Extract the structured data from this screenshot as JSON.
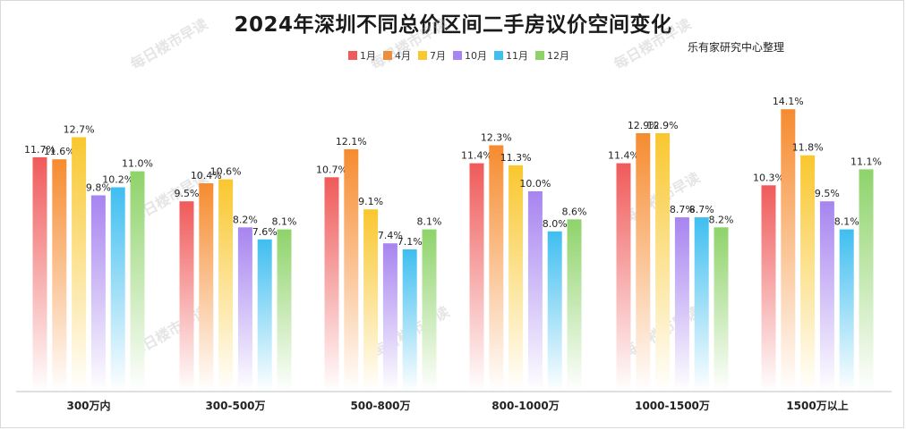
{
  "title": "2024年深圳不同总价区间二手房议价空间变化",
  "source": "乐有家研究中心整理",
  "watermark": "每日楼市早读",
  "colors": {
    "1月": "#f05a5a",
    "4月": "#f68b2f",
    "7月": "#f9c72e",
    "10月": "#a784f0",
    "11月": "#3fbef0",
    "12月": "#8ed36a"
  },
  "chart_data": {
    "type": "bar",
    "title": "2024年深圳不同总价区间二手房议价空间变化",
    "categories": [
      "300万内",
      "300-500万",
      "500-800万",
      "800-1000万",
      "1000-1500万",
      "1500万以上"
    ],
    "series": [
      {
        "name": "1月",
        "values": [
          11.7,
          9.5,
          10.7,
          11.4,
          11.4,
          10.3
        ],
        "labels": [
          "11.7%",
          "9.5%",
          "10.7%",
          "11.4%",
          "11.4%",
          "10.3%"
        ]
      },
      {
        "name": "4月",
        "values": [
          11.6,
          10.4,
          12.1,
          12.3,
          12.9,
          14.1
        ],
        "labels": [
          "11.6%",
          "10.4%",
          "12.1%",
          "12.3%",
          "12.9%",
          "14.1%"
        ]
      },
      {
        "name": "7月",
        "values": [
          12.7,
          10.6,
          9.1,
          11.3,
          12.9,
          11.8
        ],
        "labels": [
          "12.7%",
          "10.6%",
          "9.1%",
          "11.3%",
          "12.9%",
          "11.8%"
        ]
      },
      {
        "name": "10月",
        "values": [
          9.8,
          8.2,
          7.4,
          10.0,
          8.7,
          9.5
        ],
        "labels": [
          "9.8%",
          "8.2%",
          "7.4%",
          "10.0%",
          "8.7%",
          "9.5%"
        ]
      },
      {
        "name": "11月",
        "values": [
          10.2,
          7.6,
          7.1,
          8.0,
          8.7,
          8.1
        ],
        "labels": [
          "10.2%",
          "7.6%",
          "7.1%",
          "8.0%",
          "8.7%",
          "8.1%"
        ]
      },
      {
        "name": "12月",
        "values": [
          11.0,
          8.1,
          8.1,
          8.6,
          8.2,
          11.1
        ],
        "labels": [
          "11.0%",
          "8.1%",
          "8.1%",
          "8.6%",
          "8.2%",
          "11.1%"
        ]
      }
    ],
    "ylim": [
      0,
      15
    ],
    "grid": false,
    "legend": "top-center"
  }
}
